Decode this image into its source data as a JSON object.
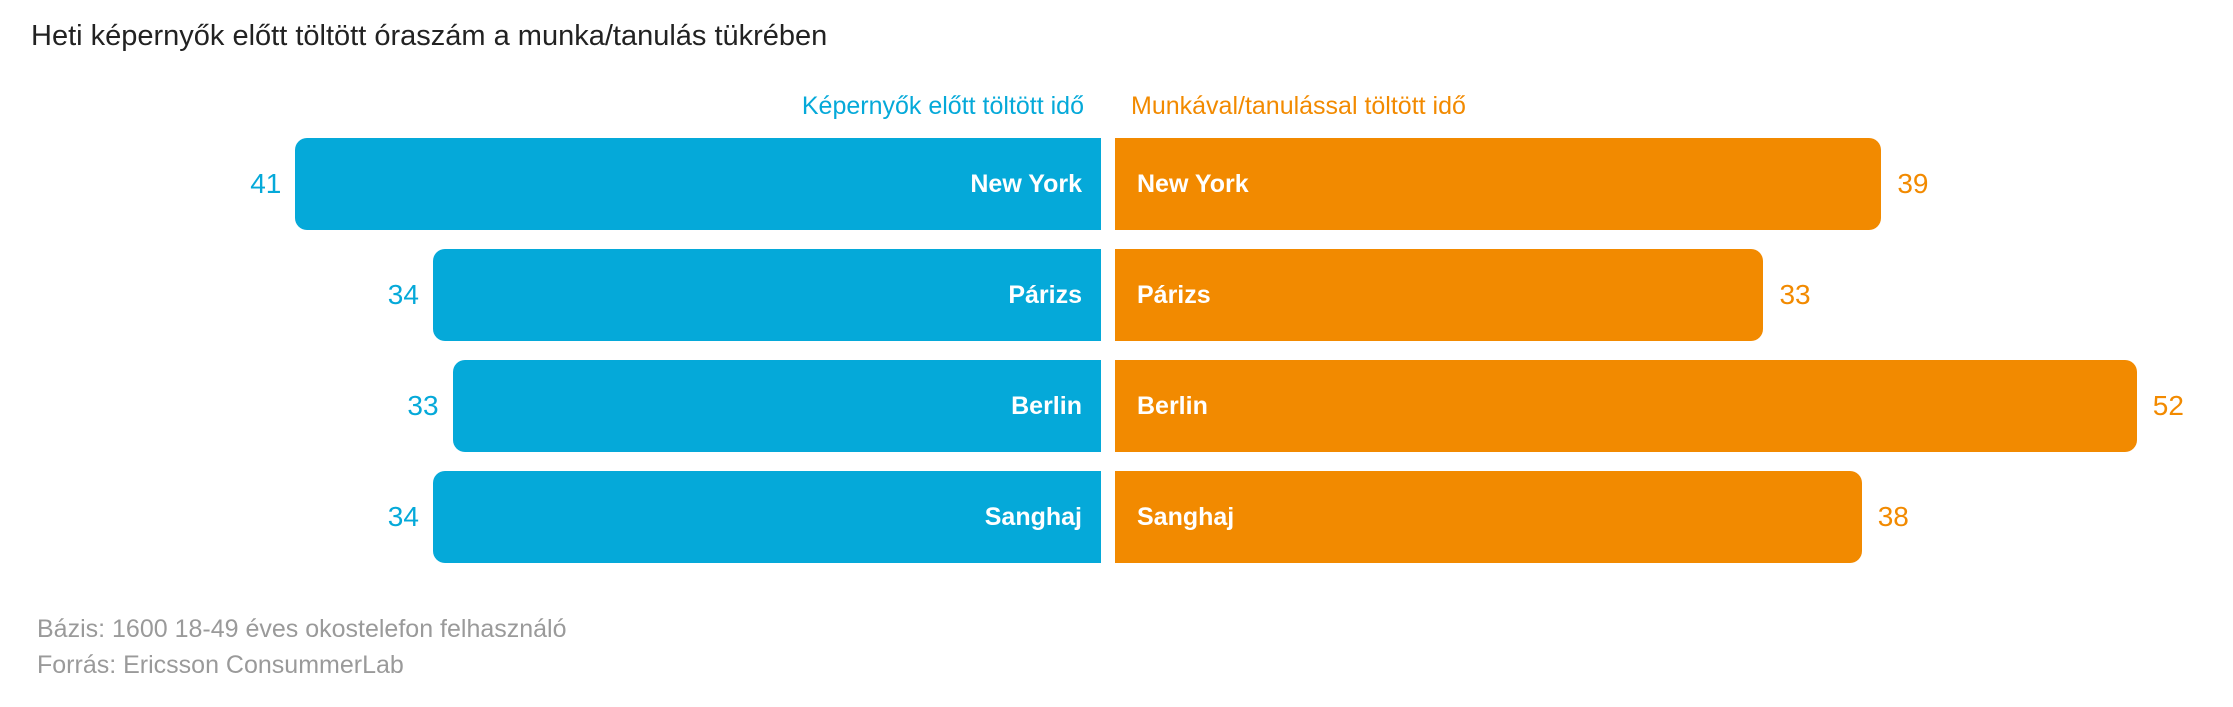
{
  "chart_data": {
    "type": "bar",
    "orientation": "horizontal-diverging",
    "title": "Heti képernyők előtt töltött óraszám a munka/tanulás tükrében",
    "categories": [
      "New York",
      "Párizs",
      "Berlin",
      "Sanghaj"
    ],
    "series": [
      {
        "name": "Képernyők előtt töltött idő",
        "values": [
          41,
          34,
          33,
          34
        ],
        "color": "#05a9d9",
        "side": "left"
      },
      {
        "name": "Munkával/tanulással töltött idő",
        "values": [
          39,
          33,
          52,
          38
        ],
        "color": "#f28a00",
        "side": "right"
      }
    ],
    "grid": false,
    "legend": "top-center"
  },
  "footer": {
    "base": "Bázis: 1600 18-49 éves okostelefon felhasználó",
    "source": "Forrás: Ericsson ConsummerLab"
  }
}
